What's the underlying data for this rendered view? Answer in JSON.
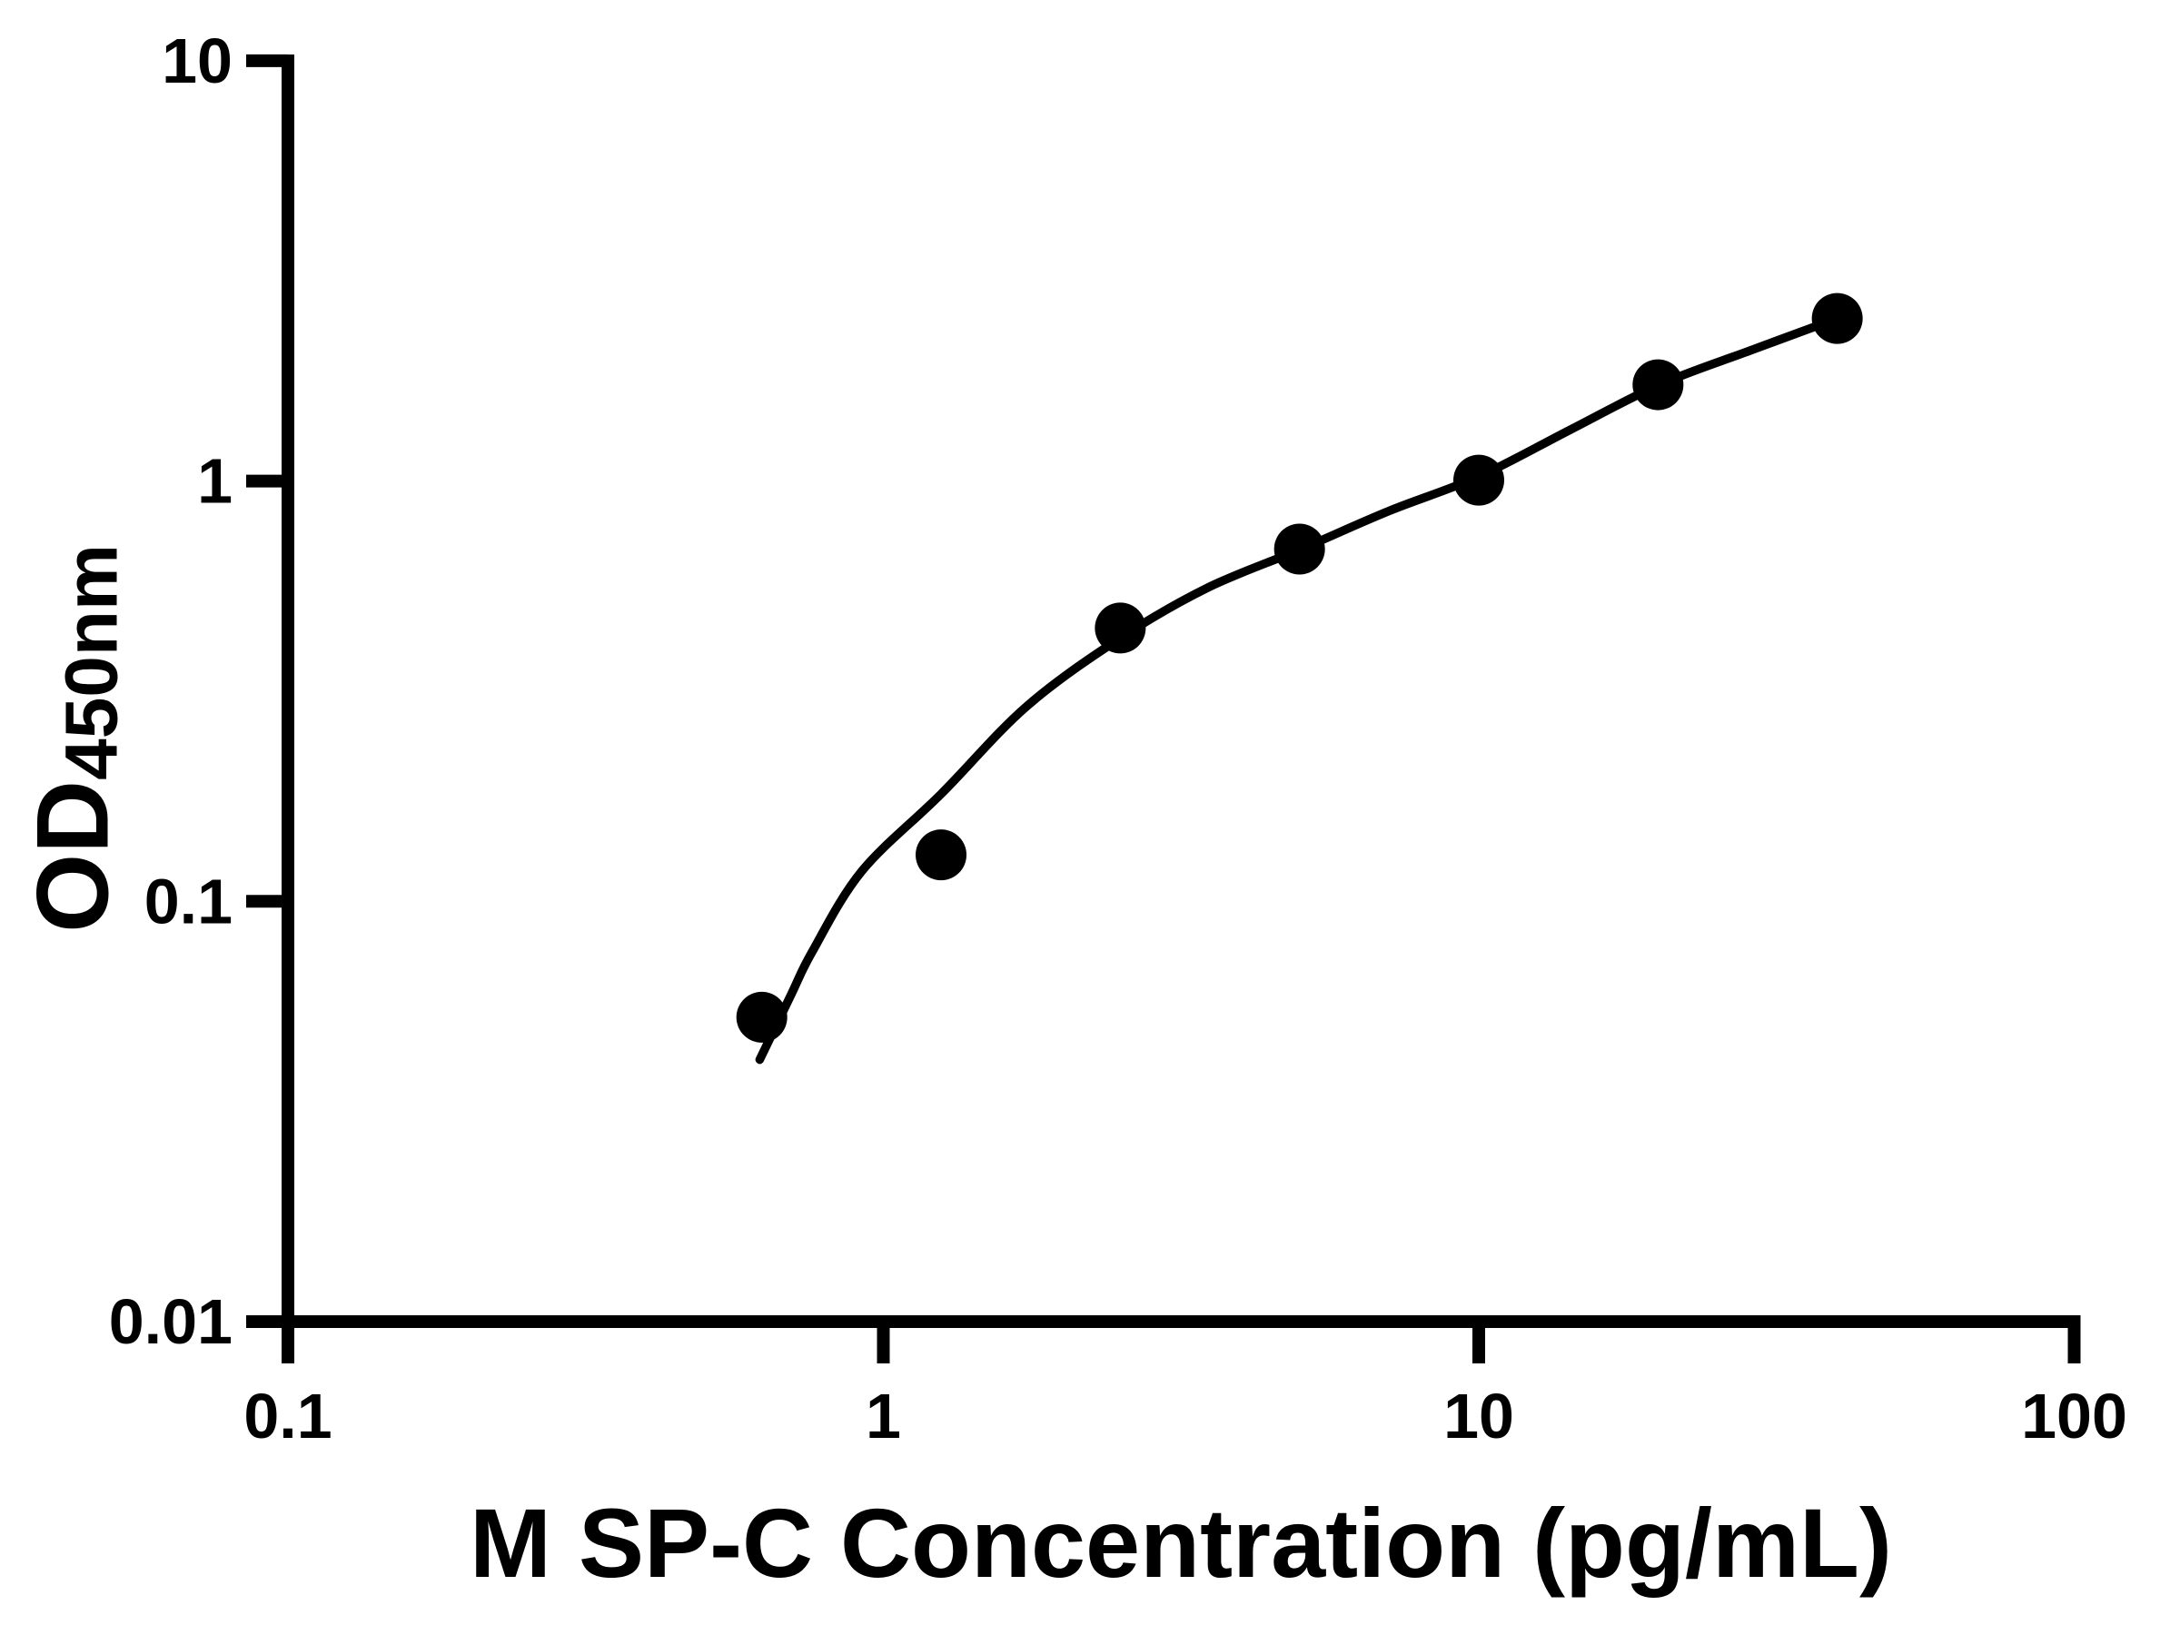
{
  "figure": {
    "background_color": "#ffffff",
    "foreground_color": "#000000"
  },
  "chart_data": {
    "type": "scatter",
    "title": "",
    "xlabel": "M SP-C Concentration (pg/mL)",
    "ylabel_main": "OD",
    "ylabel_sub": "450nm",
    "xscale": "log",
    "yscale": "log",
    "xlim": [
      0.1,
      100
    ],
    "ylim": [
      0.01,
      10
    ],
    "grid": false,
    "legend": false,
    "x_ticks": [
      {
        "value": 0.1,
        "label": "0.1"
      },
      {
        "value": 1,
        "label": "1"
      },
      {
        "value": 10,
        "label": "10"
      },
      {
        "value": 100,
        "label": "100"
      }
    ],
    "y_ticks": [
      {
        "value": 0.01,
        "label": "0.01"
      },
      {
        "value": 0.1,
        "label": "0.1"
      },
      {
        "value": 1,
        "label": "1"
      },
      {
        "value": 10,
        "label": "10"
      }
    ],
    "series": [
      {
        "name": "standard-points",
        "marker": "filled-circle",
        "color": "#000000",
        "points": [
          {
            "x": 0.625,
            "y": 0.053
          },
          {
            "x": 1.25,
            "y": 0.129
          },
          {
            "x": 2.5,
            "y": 0.447
          },
          {
            "x": 5,
            "y": 0.689
          },
          {
            "x": 10,
            "y": 1.005
          },
          {
            "x": 20,
            "y": 1.695
          },
          {
            "x": 40,
            "y": 2.437
          }
        ]
      }
    ],
    "fit_curve": {
      "name": "standard-curve-fit",
      "color": "#000000",
      "samples": [
        [
          0.62,
          0.042
        ],
        [
          0.7,
          0.06
        ],
        [
          0.76,
          0.076
        ],
        [
          0.92,
          0.118
        ],
        [
          1.25,
          0.18
        ],
        [
          1.74,
          0.291
        ],
        [
          2.5,
          0.423
        ],
        [
          3.5,
          0.557
        ],
        [
          5.03,
          0.689
        ],
        [
          7.07,
          0.849
        ],
        [
          10.0,
          1.025
        ],
        [
          14.3,
          1.328
        ],
        [
          20.1,
          1.695
        ],
        [
          28.6,
          2.045
        ],
        [
          40.0,
          2.437
        ]
      ]
    }
  }
}
